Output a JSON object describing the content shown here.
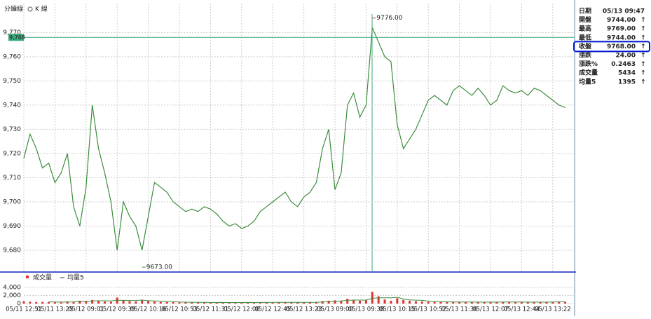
{
  "header": {
    "minute_tab": "分鐘線",
    "k_tab": "K 線"
  },
  "chart_data": [
    {
      "type": "line",
      "color": "#3c8c3c",
      "values": [
        9718,
        9728,
        9722,
        9714,
        9716,
        9708,
        9712,
        9720,
        9698,
        9690,
        9706,
        9740,
        9722,
        9712,
        9700,
        9680,
        9700,
        9694,
        9690,
        9680,
        9694,
        9708,
        9706,
        9704,
        9700,
        9698,
        9696,
        9697,
        9696,
        9698,
        9697,
        9695,
        9692,
        9690,
        9691,
        9689,
        9690,
        9692,
        9696,
        9698,
        9700,
        9702,
        9704,
        9700,
        9698,
        9702,
        9704,
        9708,
        9722,
        9730,
        9705,
        9712,
        9740,
        9745,
        9735,
        9740,
        9772,
        9766,
        9760,
        9758,
        9732,
        9722,
        9726,
        9730,
        9736,
        9742,
        9744,
        9742,
        9740,
        9746,
        9748,
        9746,
        9744,
        9747,
        9744,
        9740,
        9742,
        9748,
        9746,
        9745,
        9746,
        9744,
        9747,
        9746,
        9744,
        9742,
        9740,
        9739
      ],
      "ylim": [
        9671,
        9782
      ],
      "yticks": [
        {
          "value": 9680,
          "label": "9,680"
        },
        {
          "value": 9690,
          "label": "9,690"
        },
        {
          "value": 9700,
          "label": "9,700"
        },
        {
          "value": 9710,
          "label": "9,710"
        },
        {
          "value": 9720,
          "label": "9,720"
        },
        {
          "value": 9730,
          "label": "9,730"
        },
        {
          "value": 9740,
          "label": "9,740"
        },
        {
          "value": 9750,
          "label": "9,750"
        },
        {
          "value": 9760,
          "label": "9,760"
        },
        {
          "value": 9770,
          "label": "9,770"
        }
      ],
      "grid": true,
      "crosshair": {
        "value": 9768,
        "label": "9,768"
      },
      "annotations": [
        {
          "x": 56,
          "value": 9776,
          "label": "9776.00"
        },
        {
          "x": 19,
          "value": 9673,
          "label": "9673.00"
        }
      ]
    },
    {
      "type": "bar",
      "categories": [
        "05/11 12:51",
        null,
        null,
        null,
        null,
        "05/11 13:25",
        null,
        null,
        null,
        null,
        "05/12 09:01",
        null,
        null,
        null,
        null,
        "05/12 09:39",
        null,
        null,
        null,
        null,
        "05/12 10:16",
        null,
        null,
        null,
        null,
        "05/12 10:53",
        null,
        null,
        null,
        null,
        "05/12 11:31",
        null,
        null,
        null,
        null,
        "05/12 12:08",
        null,
        null,
        null,
        null,
        "05/12 12:45",
        null,
        null,
        null,
        null,
        "05/12 13:23",
        null,
        null,
        null,
        null,
        "05/13 09:00",
        null,
        null,
        null,
        null,
        "05/13 09:38",
        null,
        null,
        null,
        null,
        "05/13 10:15",
        null,
        null,
        null,
        null,
        "05/13 10:52",
        null,
        null,
        null,
        null,
        "05/13 11:30",
        null,
        null,
        null,
        null,
        "05/13 12:07",
        null,
        null,
        null,
        null,
        "05/13 12:44",
        null,
        null,
        null,
        null,
        "05/13 13:22",
        null,
        null
      ],
      "series": [
        {
          "name": "成交量",
          "color": "#e03030",
          "values": [
            600,
            450,
            380,
            420,
            350,
            400,
            300,
            520,
            480,
            700,
            650,
            900,
            700,
            500,
            450,
            1500,
            800,
            600,
            550,
            900,
            700,
            500,
            400,
            380,
            350,
            300,
            320,
            280,
            300,
            260,
            240,
            250,
            300,
            280,
            260,
            240,
            270,
            290,
            300,
            320,
            300,
            280,
            310,
            290,
            300,
            320,
            350,
            380,
            600,
            700,
            800,
            700,
            1200,
            900,
            700,
            800,
            2900,
            1800,
            1000,
            700,
            1300,
            900,
            700,
            600,
            500,
            450,
            400,
            420,
            380,
            360,
            400,
            380,
            350,
            340,
            360,
            380,
            420,
            400,
            380,
            360,
            350,
            340,
            360,
            380,
            400,
            420,
            500,
            450
          ]
        },
        {
          "name": "均量5",
          "color": "#3c8c3c",
          "values": [
            null,
            null,
            null,
            null,
            440,
            400,
            370,
            398,
            410,
            480,
            530,
            650,
            686,
            690,
            640,
            810,
            790,
            770,
            780,
            870,
            710,
            650,
            610,
            576,
            466,
            386,
            350,
            326,
            310,
            292,
            280,
            266,
            270,
            266,
            266,
            266,
            270,
            268,
            272,
            284,
            296,
            298,
            302,
            300,
            296,
            300,
            314,
            328,
            390,
            470,
            566,
            636,
            800,
            860,
            860,
            860,
            1300,
            1420,
            1440,
            1440,
            1540,
            1140,
            920,
            840,
            800,
            630,
            530,
            474,
            430,
            402,
            392,
            388,
            374,
            366,
            366,
            362,
            370,
            380,
            388,
            388,
            382,
            366,
            358,
            358,
            366,
            380,
            412,
            430
          ]
        }
      ],
      "ylim": [
        0,
        7100
      ],
      "yticks": [
        0,
        {
          "value": 2000,
          "label": "2,000"
        },
        {
          "value": 4000,
          "label": "4,000"
        }
      ]
    }
  ],
  "info_panel": {
    "rows": [
      [
        "日期",
        "05/13 09:47"
      ],
      [
        "開盤",
        "9744.00",
        "↑"
      ],
      [
        "最高",
        "9769.00",
        "↑"
      ],
      [
        "最低",
        "9744.00",
        "↑"
      ],
      [
        "收盤",
        "9768.00",
        "↑"
      ],
      [
        "漲跌",
        "24.00",
        "↑"
      ],
      [
        "漲跌%",
        "0.2463",
        "↑"
      ],
      [
        "成交量",
        "5434",
        "↑"
      ],
      [
        "均量5",
        "1395",
        "↑"
      ]
    ]
  }
}
